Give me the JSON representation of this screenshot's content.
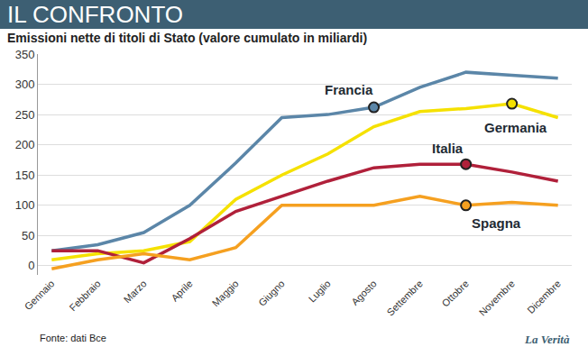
{
  "chart_data": {
    "type": "line",
    "title": "IL CONFRONTO",
    "subtitle": "Emissioni nette di titoli di Stato (valore cumulato in miliardi)",
    "source": "Fonte: dati Bce",
    "publisher": "La Verità",
    "categories": [
      "Gennaio",
      "Febbraio",
      "Marzo",
      "Aprile",
      "Maggio",
      "Giugno",
      "Luglio",
      "Agosto",
      "Settembre",
      "Ottobre",
      "Novembre",
      "Dicembre"
    ],
    "series": [
      {
        "name": "Francia",
        "color": "#5b86a8",
        "values": [
          25,
          35,
          55,
          100,
          170,
          245,
          250,
          262,
          295,
          320,
          315,
          310
        ]
      },
      {
        "name": "Germania",
        "color": "#f5e100",
        "values": [
          10,
          20,
          25,
          40,
          110,
          150,
          185,
          230,
          255,
          260,
          268,
          245
        ]
      },
      {
        "name": "Italia",
        "color": "#b0203a",
        "values": [
          25,
          25,
          5,
          45,
          90,
          115,
          140,
          162,
          168,
          168,
          155,
          140
        ]
      },
      {
        "name": "Spagna",
        "color": "#f5a020",
        "values": [
          -5,
          10,
          20,
          10,
          30,
          100,
          100,
          100,
          115,
          100,
          105,
          100
        ]
      }
    ],
    "ylim": [
      -15,
      350
    ],
    "yticks": [
      0,
      50,
      100,
      150,
      200,
      250,
      300,
      350
    ],
    "grid": true
  }
}
